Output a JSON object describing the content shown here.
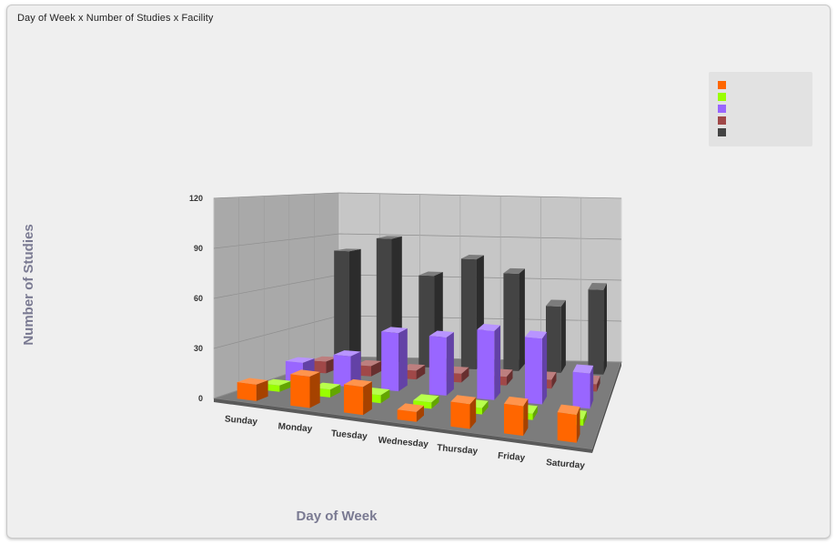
{
  "panel": {
    "title": "Day of Week x Number of Studies x Facility"
  },
  "legend": {
    "items": [
      {
        "label": "",
        "color": "#ff6600"
      },
      {
        "label": "",
        "color": "#99ff00"
      },
      {
        "label": "",
        "color": "#9966ff"
      },
      {
        "label": "",
        "color": "#a04848"
      },
      {
        "label": "",
        "color": "#444444"
      }
    ]
  },
  "chart_data": {
    "type": "bar",
    "style": "3d-clustered-depth",
    "title": "",
    "xlabel": "Day of Week",
    "ylabel": "Number of Studies",
    "ylim": [
      0,
      120
    ],
    "yticks": [
      0,
      30,
      60,
      90,
      120
    ],
    "grid": true,
    "legend_position": "top-right",
    "categories": [
      "Sunday",
      "Monday",
      "Tuesday",
      "Wednesday",
      "Thursday",
      "Friday",
      "Saturday"
    ],
    "series": [
      {
        "color": "#ff6600",
        "values": [
          10,
          19,
          17,
          6,
          15,
          18,
          17
        ]
      },
      {
        "color": "#99ff00",
        "values": [
          4,
          5,
          5,
          4,
          4,
          4,
          4
        ]
      },
      {
        "color": "#9966ff",
        "values": [
          13,
          20,
          38,
          38,
          45,
          43,
          23
        ]
      },
      {
        "color": "#a04848",
        "values": [
          8,
          7,
          6,
          6,
          6,
          6,
          5
        ]
      },
      {
        "color": "#444444",
        "values": [
          80,
          90,
          65,
          78,
          69,
          47,
          60
        ]
      }
    ]
  }
}
